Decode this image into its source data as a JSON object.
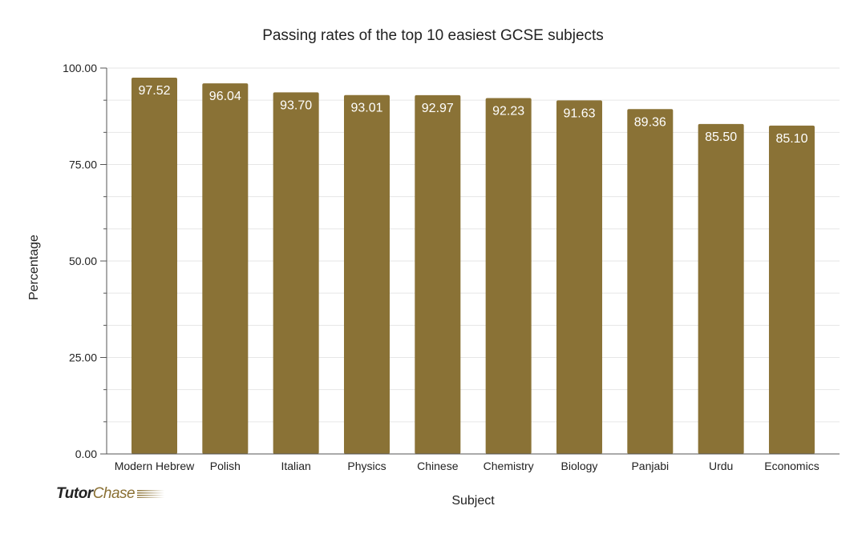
{
  "chart_data": {
    "type": "bar",
    "title": "Passing rates of the top 10 easiest GCSE subjects",
    "xlabel": "Subject",
    "ylabel": "Percentage",
    "categories": [
      "Modern Hebrew",
      "Polish",
      "Italian",
      "Physics",
      "Chinese",
      "Chemistry",
      "Biology",
      "Panjabi",
      "Urdu",
      "Economics"
    ],
    "values": [
      97.52,
      96.04,
      93.7,
      93.01,
      92.97,
      92.23,
      91.63,
      89.36,
      85.5,
      85.1
    ],
    "ylim": [
      0,
      100
    ],
    "yticks": [
      "0.00",
      "25.00",
      "50.00",
      "75.00",
      "100.00"
    ],
    "grid": true,
    "bar_color": "#8a7236",
    "data_labels": true
  },
  "logo": {
    "part1": "Tutor",
    "part2": "Chase"
  }
}
